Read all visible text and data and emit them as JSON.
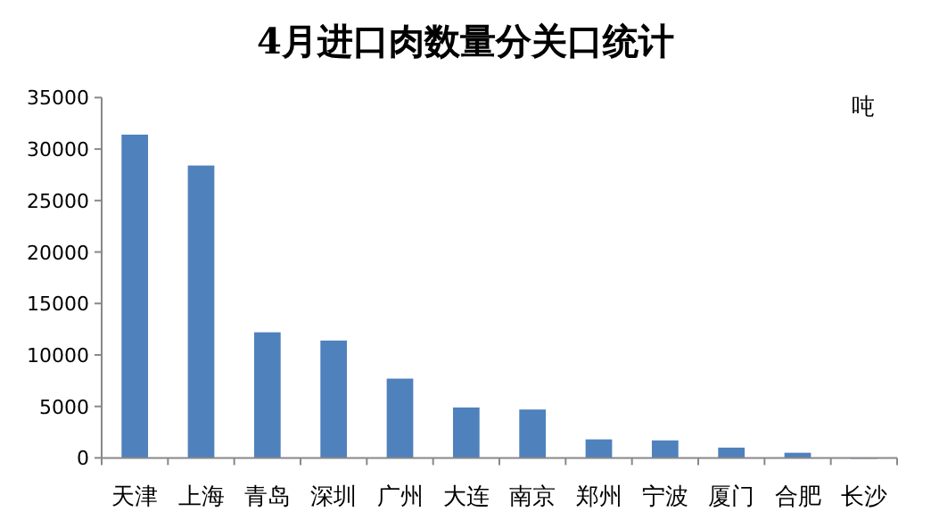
{
  "chart_data": {
    "type": "bar",
    "title": "4月进口肉数量分关口统计",
    "annotations": [
      "吨"
    ],
    "categories": [
      "天津",
      "上海",
      "青岛",
      "深圳",
      "广州",
      "大连",
      "南京",
      "郑州",
      "宁波",
      "厦门",
      "合肥",
      "长沙"
    ],
    "values": [
      31400,
      28400,
      12200,
      11400,
      7700,
      4900,
      4700,
      1800,
      1700,
      1000,
      500,
      0
    ],
    "color": "#4f81bd",
    "ylim": [
      0,
      35000
    ],
    "yticks": [
      0,
      5000,
      10000,
      15000,
      20000,
      25000,
      30000,
      35000
    ]
  }
}
